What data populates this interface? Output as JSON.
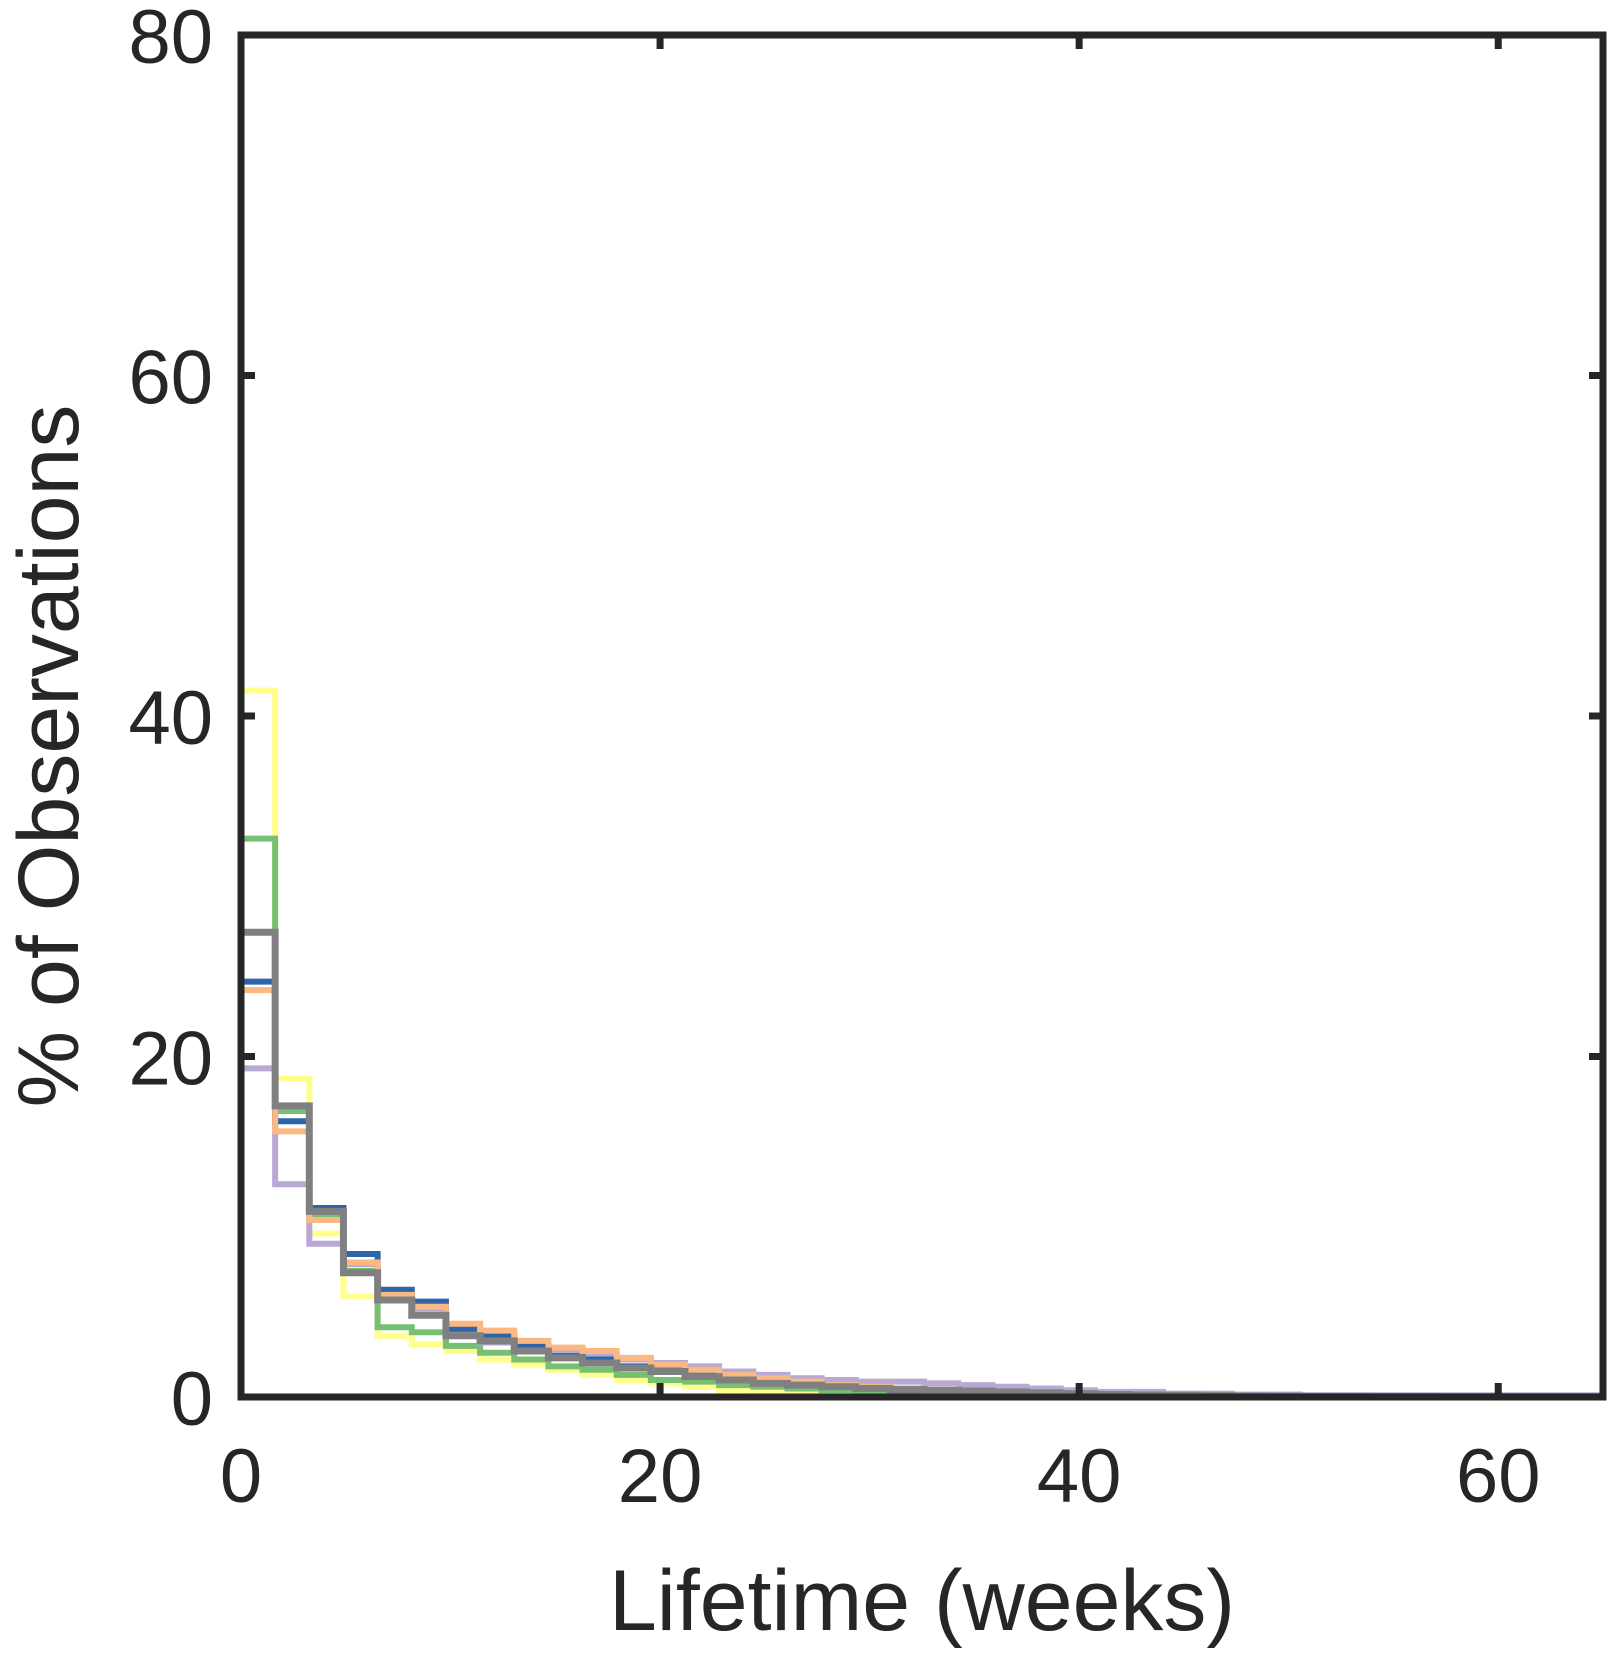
{
  "chart_data": {
    "type": "line",
    "drawstyle": "steps-post",
    "title": "",
    "xlabel": "Lifetime (weeks)",
    "ylabel": "% of Observations",
    "xlim": [
      0,
      65
    ],
    "ylim": [
      0,
      80
    ],
    "xticks": [
      0,
      20,
      40,
      60
    ],
    "yticks": [
      0,
      20,
      40,
      60,
      80
    ],
    "grid": false,
    "legend": "none",
    "bin_width": 1.63,
    "series": [
      {
        "color": "#ffff8c",
        "values": [
          41.5,
          18.7,
          9.6,
          5.9,
          3.6,
          3.1,
          2.7,
          2.2,
          1.9,
          1.6,
          1.3,
          1.0,
          0.8,
          0.6,
          0.4,
          0.3,
          0.25,
          0.2,
          0.15,
          0.12,
          0.1,
          0.08,
          0.06,
          0.05,
          0.04,
          0.03,
          0.03,
          0.02,
          0.02,
          0.02,
          0.01,
          0.01,
          0.01,
          0.01,
          0.01,
          0.01,
          0.01,
          0.01,
          0.01,
          0.01
        ]
      },
      {
        "color": "#77bf73",
        "values": [
          32.8,
          16.8,
          10.6,
          7.4,
          4.1,
          3.8,
          3.0,
          2.6,
          2.2,
          1.8,
          1.6,
          1.3,
          1.0,
          0.9,
          0.7,
          0.6,
          0.5,
          0.4,
          0.35,
          0.3,
          0.25,
          0.2,
          0.15,
          0.12,
          0.1,
          0.08,
          0.07,
          0.06,
          0.05,
          0.04,
          0.03,
          0.03,
          0.02,
          0.02,
          0.02,
          0.01,
          0.01,
          0.01,
          0.01,
          0.01
        ]
      },
      {
        "color": "#b8a8d4",
        "values": [
          19.3,
          12.5,
          9.0,
          7.8,
          6.0,
          5.2,
          3.8,
          3.2,
          2.8,
          2.6,
          2.4,
          2.2,
          2.0,
          1.8,
          1.5,
          1.3,
          1.1,
          1.0,
          0.9,
          0.9,
          0.8,
          0.7,
          0.6,
          0.5,
          0.4,
          0.3,
          0.3,
          0.2,
          0.2,
          0.15,
          0.15,
          0.1,
          0.1,
          0.1,
          0.1,
          0.1,
          0.1,
          0.1,
          0.1,
          0.1
        ]
      },
      {
        "color": "#2e64a8",
        "values": [
          24.4,
          16.2,
          11.1,
          8.4,
          6.3,
          5.6,
          4.0,
          3.6,
          3.0,
          2.4,
          2.2,
          1.8,
          1.6,
          1.3,
          1.1,
          0.9,
          0.7,
          0.6,
          0.5,
          0.4,
          0.35,
          0.3,
          0.25,
          0.2,
          0.15,
          0.12,
          0.1,
          0.08,
          0.07,
          0.06,
          0.05,
          0.04,
          0.03,
          0.03,
          0.02,
          0.02,
          0.02,
          0.02,
          0.02,
          0.02
        ]
      },
      {
        "color": "#fab882",
        "values": [
          23.9,
          15.6,
          10.4,
          7.9,
          6.0,
          5.3,
          4.3,
          3.9,
          3.3,
          2.9,
          2.7,
          2.3,
          1.9,
          1.6,
          1.3,
          1.1,
          0.9,
          0.7,
          0.6,
          0.5,
          0.4,
          0.35,
          0.3,
          0.25,
          0.2,
          0.15,
          0.12,
          0.1,
          0.08,
          0.07,
          0.06,
          0.05,
          0.04,
          0.03,
          0.03,
          0.02,
          0.02,
          0.02,
          0.02,
          0.02
        ]
      },
      {
        "color": "#808080",
        "values": [
          27.3,
          17.1,
          10.9,
          7.3,
          5.7,
          4.8,
          3.6,
          3.3,
          2.7,
          2.3,
          2.0,
          1.7,
          1.5,
          1.2,
          1.0,
          0.8,
          0.7,
          0.6,
          0.5,
          0.45,
          0.4,
          0.35,
          0.3,
          0.25,
          0.2,
          0.15,
          0.12,
          0.1,
          0.08,
          0.06,
          0.05,
          0.04,
          0.04,
          0.03,
          0.03,
          0.02,
          0.02,
          0.02,
          0.02,
          0.02
        ]
      }
    ]
  }
}
